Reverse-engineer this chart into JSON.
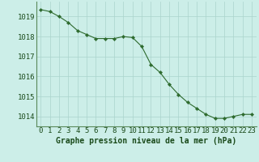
{
  "hours": [
    0,
    1,
    2,
    3,
    4,
    5,
    6,
    7,
    8,
    9,
    10,
    11,
    12,
    13,
    14,
    15,
    16,
    17,
    18,
    19,
    20,
    21,
    22,
    23
  ],
  "pressure": [
    1019.35,
    1019.25,
    1019.0,
    1018.7,
    1018.3,
    1018.1,
    1017.9,
    1017.9,
    1017.9,
    1018.0,
    1017.95,
    1017.5,
    1016.6,
    1016.2,
    1015.6,
    1015.1,
    1014.7,
    1014.4,
    1014.1,
    1013.9,
    1013.9,
    1014.0,
    1014.1,
    1014.1
  ],
  "line_color": "#2d6a2d",
  "marker_color": "#2d6a2d",
  "bg_color": "#cceee8",
  "grid_color": "#aad4cc",
  "xlabel": "Graphe pression niveau de la mer (hPa)",
  "ylim": [
    1013.5,
    1019.75
  ],
  "yticks": [
    1014,
    1015,
    1016,
    1017,
    1018,
    1019
  ],
  "xlabel_fontsize": 7,
  "tick_fontsize": 6.5,
  "label_color": "#1a4a1a"
}
